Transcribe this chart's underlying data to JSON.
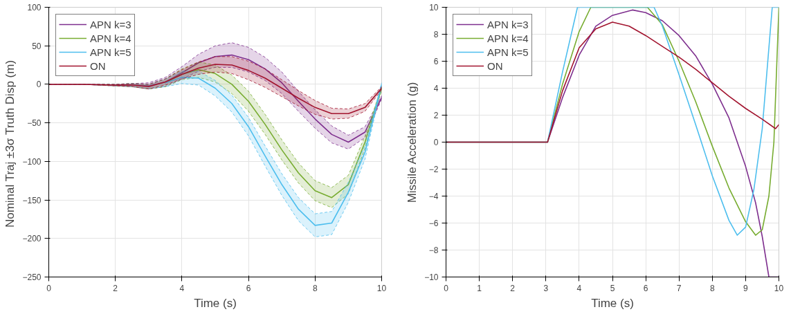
{
  "chart_data": [
    {
      "type": "line",
      "xlabel": "Time (s)",
      "ylabel": "Nominal Traj  ±3σ Truth Disp (m)",
      "xlim": [
        0,
        10
      ],
      "ylim": [
        -250,
        100
      ],
      "xticks": [
        0,
        2,
        4,
        6,
        8,
        10
      ],
      "yticks": [
        -250,
        -200,
        -150,
        -100,
        -50,
        0,
        50,
        100
      ],
      "grid": true,
      "legend": "top left",
      "x": [
        0,
        1,
        2,
        2.5,
        3,
        3.5,
        4,
        4.5,
        5,
        5.5,
        6,
        6.5,
        7,
        7.5,
        8,
        8.5,
        9,
        9.5,
        10
      ],
      "series": [
        {
          "name": "APN k=3",
          "color": "#7e2f8e",
          "values": [
            0,
            0,
            -1,
            -1,
            -2,
            3,
            15,
            28,
            36,
            38,
            32,
            20,
            2,
            -22,
            -45,
            -65,
            -75,
            -62,
            -17
          ],
          "upper": [
            0,
            0,
            0,
            1,
            2,
            9,
            23,
            39,
            50,
            54,
            48,
            35,
            16,
            -9,
            -33,
            -54,
            -66,
            -55,
            -15
          ],
          "lower": [
            0,
            0,
            -2,
            -3,
            -6,
            -3,
            7,
            17,
            22,
            22,
            16,
            5,
            -12,
            -35,
            -57,
            -76,
            -84,
            -69,
            -19
          ]
        },
        {
          "name": "APN k=4",
          "color": "#77ac30",
          "values": [
            null,
            null,
            null,
            null,
            null,
            2,
            13,
            19,
            14,
            0,
            -22,
            -52,
            -85,
            -115,
            -138,
            -147,
            -130,
            -75,
            -5
          ],
          "upper": [
            0,
            0,
            0,
            1,
            0,
            7,
            20,
            29,
            25,
            12,
            -9,
            -39,
            -72,
            -102,
            -125,
            -134,
            -118,
            -67,
            -3
          ],
          "lower": [
            0,
            0,
            -2,
            -3,
            -6,
            -3,
            6,
            9,
            3,
            -12,
            -35,
            -65,
            -98,
            -128,
            -151,
            -160,
            -142,
            -83,
            -7
          ]
        },
        {
          "name": "APN k=5",
          "color": "#4dbeee",
          "values": [
            null,
            null,
            null,
            null,
            null,
            2,
            9,
            8,
            -5,
            -25,
            -55,
            -93,
            -130,
            -162,
            -183,
            -180,
            -140,
            -88,
            0
          ],
          "upper": [
            0,
            0,
            0,
            1,
            0,
            7,
            17,
            17,
            5,
            -14,
            -43,
            -80,
            -116,
            -147,
            -168,
            -165,
            -127,
            -79,
            2
          ],
          "lower": [
            0,
            0,
            -2,
            -3,
            -6,
            -3,
            1,
            -1,
            -15,
            -36,
            -67,
            -106,
            -144,
            -177,
            -198,
            -195,
            -153,
            -97,
            -2
          ]
        },
        {
          "name": "ON",
          "color": "#a2142f",
          "values": [
            0,
            0,
            -1,
            -1,
            -3,
            3,
            13,
            21,
            26,
            25,
            18,
            8,
            -5,
            -18,
            -30,
            -38,
            -38,
            -30,
            -5
          ],
          "upper": [
            0,
            0,
            0,
            1,
            0,
            7,
            19,
            29,
            36,
            36,
            30,
            20,
            6,
            -8,
            -21,
            -31,
            -32,
            -25,
            -3
          ],
          "lower": [
            0,
            0,
            -2,
            -3,
            -6,
            -1,
            7,
            13,
            16,
            14,
            6,
            -4,
            -16,
            -28,
            -39,
            -45,
            -44,
            -35,
            -7
          ]
        }
      ]
    },
    {
      "type": "line",
      "xlabel": "Time (s)",
      "ylabel": "Missile Acceleration (g)",
      "xlim": [
        0,
        10
      ],
      "ylim": [
        -10,
        10
      ],
      "xticks": [
        0,
        1,
        2,
        3,
        4,
        5,
        6,
        7,
        8,
        9,
        10
      ],
      "yticks": [
        -10,
        -8,
        -6,
        -4,
        -2,
        0,
        2,
        4,
        6,
        8,
        10
      ],
      "grid": true,
      "legend": "top left",
      "series": [
        {
          "name": "APN k=3",
          "color": "#7e2f8e",
          "x": [
            0,
            3.05,
            3.5,
            4,
            4.5,
            5,
            5.6,
            6,
            6.5,
            7,
            7.5,
            8,
            8.5,
            9,
            9.3,
            9.5,
            9.7,
            10
          ],
          "values": [
            0,
            0,
            3.3,
            6.45,
            8.6,
            9.4,
            9.8,
            9.6,
            9.0,
            7.9,
            6.4,
            4.3,
            1.8,
            -1.8,
            -4.5,
            -7,
            -10,
            -10
          ]
        },
        {
          "name": "APN k=4",
          "color": "#77ac30",
          "x": [
            0,
            3.05,
            3.5,
            4,
            4.35,
            6.05,
            6.5,
            7,
            7.5,
            8,
            8.5,
            9,
            9.3,
            9.5,
            9.7,
            9.85,
            10
          ],
          "values": [
            0,
            0,
            4.3,
            8.2,
            10,
            10,
            8.7,
            6.0,
            3.0,
            -0.3,
            -3.4,
            -5.9,
            -6.9,
            -6.5,
            -4,
            0,
            10
          ]
        },
        {
          "name": "APN k=5",
          "color": "#4dbeee",
          "x": [
            0,
            3.05,
            3.5,
            3.95,
            6.25,
            6.5,
            7,
            7.5,
            8,
            8.5,
            8.75,
            9,
            9.25,
            9.5,
            9.8,
            10
          ],
          "values": [
            0,
            0,
            5.2,
            10,
            10,
            8.6,
            5,
            1.3,
            -2.5,
            -5.8,
            -6.9,
            -6.3,
            -3.5,
            1,
            10,
            10
          ]
        },
        {
          "name": "ON",
          "color": "#a2142f",
          "x": [
            0,
            3.05,
            3.5,
            4,
            4.5,
            5,
            5.5,
            6,
            6.5,
            7,
            7.5,
            8,
            8.5,
            9,
            9.5,
            9.9,
            10
          ],
          "values": [
            0,
            0,
            3.8,
            7,
            8.4,
            8.9,
            8.6,
            7.9,
            7.1,
            6.3,
            5.4,
            4.4,
            3.4,
            2.5,
            1.7,
            1.0,
            1.3
          ]
        }
      ]
    }
  ]
}
